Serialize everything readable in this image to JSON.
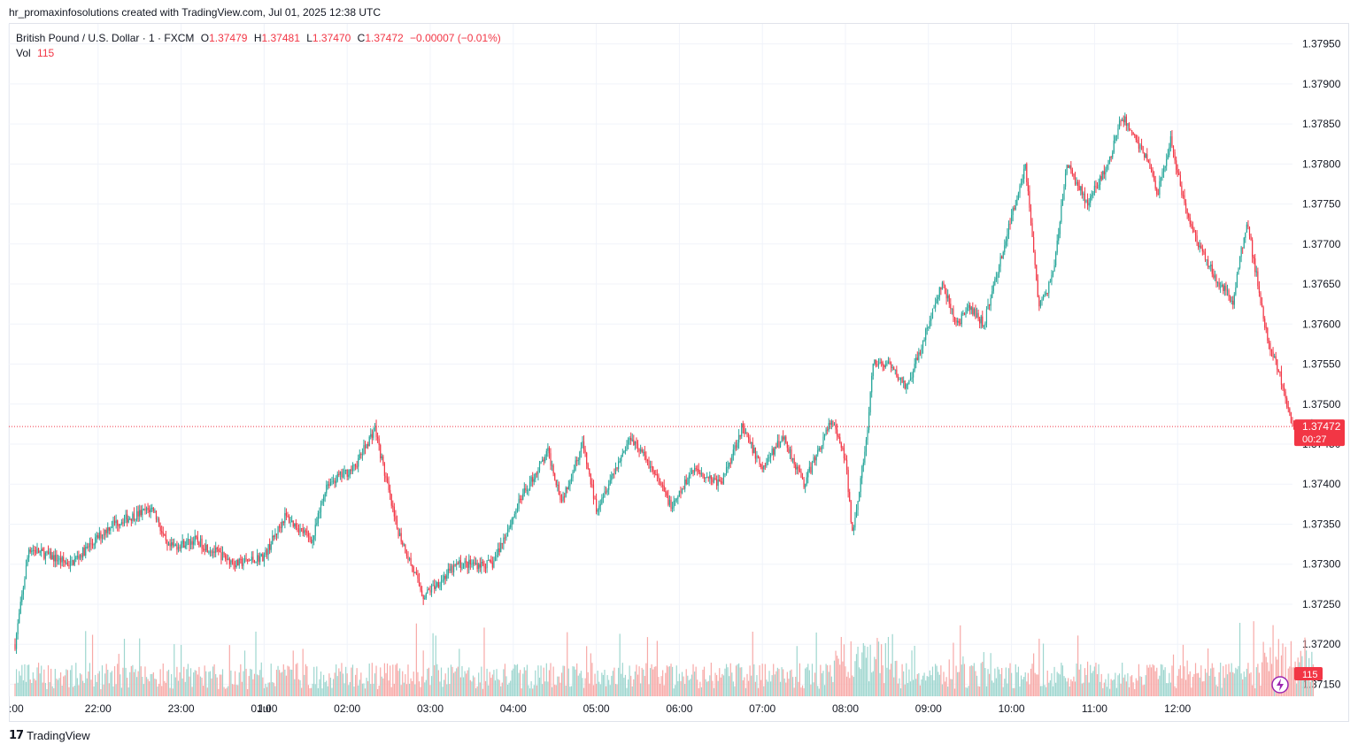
{
  "caption": "hr_promaxinfosolutions created with TradingView.com, Jul 01, 2025 12:38 UTC",
  "legend": {
    "symbol": "British Pound / U.S. Dollar · 1 · FXCM",
    "open_label": "O",
    "open": "1.37479",
    "high_label": "H",
    "high": "1.37481",
    "low_label": "L",
    "low": "1.37470",
    "close_label": "C",
    "close": "1.37472",
    "change": "−0.00007 (−0.01%)",
    "vol_label": "Vol",
    "vol": "115"
  },
  "price_tag": {
    "price": "1.37472",
    "countdown": "00:27"
  },
  "vol_tag": "115",
  "footer": {
    "logo_mark": "17",
    "brand": "TradingView"
  },
  "colors": {
    "up": "#26a69a",
    "down": "#f23645",
    "vol_up": "#9ed6cf",
    "vol_down": "#f7a9a7",
    "grid": "#f0f3fa",
    "text": "#131722"
  },
  "chart_data": {
    "type": "candlestick",
    "title": "British Pound / U.S. Dollar · 1 · FXCM",
    "y_ticks": [
      "1.37950",
      "1.37900",
      "1.37850",
      "1.37800",
      "1.37750",
      "1.37700",
      "1.37650",
      "1.37600",
      "1.37550",
      "1.37500",
      "1.37450",
      "1.37400",
      "1.37350",
      "1.37300",
      "1.37250",
      "1.37200",
      "1.37150"
    ],
    "y_range": [
      1.37135,
      1.37975
    ],
    "x_ticks": [
      ":00",
      "22:00",
      "23:00",
      "Jul",
      "01:00",
      "02:00",
      "03:00",
      "04:00",
      "05:00",
      "06:00",
      "07:00",
      "08:00",
      "09:00",
      "10:00",
      "11:00",
      "12:00"
    ],
    "last_price": 1.37472,
    "key_prices": [
      {
        "time": "21:00",
        "price": 1.372
      },
      {
        "time": "21:10",
        "price": 1.3732
      },
      {
        "time": "21:40",
        "price": 1.373
      },
      {
        "time": "22:10",
        "price": 1.3735
      },
      {
        "time": "22:40",
        "price": 1.3737
      },
      {
        "time": "22:50",
        "price": 1.3732
      },
      {
        "time": "23:10",
        "price": 1.3733
      },
      {
        "time": "23:40",
        "price": 1.373
      },
      {
        "time": "00:00",
        "price": 1.3731
      },
      {
        "time": "00:15",
        "price": 1.3736
      },
      {
        "time": "00:35",
        "price": 1.3733
      },
      {
        "time": "00:45",
        "price": 1.374
      },
      {
        "time": "01:05",
        "price": 1.3742
      },
      {
        "time": "01:20",
        "price": 1.3747
      },
      {
        "time": "01:35",
        "price": 1.3735
      },
      {
        "time": "01:55",
        "price": 1.3726
      },
      {
        "time": "02:20",
        "price": 1.373
      },
      {
        "time": "02:45",
        "price": 1.373
      },
      {
        "time": "03:05",
        "price": 1.3738
      },
      {
        "time": "03:25",
        "price": 1.3744
      },
      {
        "time": "03:35",
        "price": 1.3738
      },
      {
        "time": "03:50",
        "price": 1.3745
      },
      {
        "time": "04:00",
        "price": 1.3737
      },
      {
        "time": "04:25",
        "price": 1.3746
      },
      {
        "time": "04:40",
        "price": 1.3742
      },
      {
        "time": "04:55",
        "price": 1.3737
      },
      {
        "time": "05:10",
        "price": 1.3742
      },
      {
        "time": "05:30",
        "price": 1.374
      },
      {
        "time": "05:45",
        "price": 1.3747
      },
      {
        "time": "06:00",
        "price": 1.3742
      },
      {
        "time": "06:15",
        "price": 1.3746
      },
      {
        "time": "06:30",
        "price": 1.374
      },
      {
        "time": "06:50",
        "price": 1.3748
      },
      {
        "time": "07:00",
        "price": 1.3743
      },
      {
        "time": "07:05",
        "price": 1.3734
      },
      {
        "time": "07:15",
        "price": 1.3745
      },
      {
        "time": "07:20",
        "price": 1.3755
      },
      {
        "time": "07:30",
        "price": 1.3755
      },
      {
        "time": "07:45",
        "price": 1.3752
      },
      {
        "time": "08:00",
        "price": 1.376
      },
      {
        "time": "08:10",
        "price": 1.3765
      },
      {
        "time": "08:20",
        "price": 1.376
      },
      {
        "time": "08:30",
        "price": 1.3762
      },
      {
        "time": "08:40",
        "price": 1.376
      },
      {
        "time": "08:55",
        "price": 1.377
      },
      {
        "time": "09:10",
        "price": 1.378
      },
      {
        "time": "09:20",
        "price": 1.3762
      },
      {
        "time": "09:30",
        "price": 1.3766
      },
      {
        "time": "09:40",
        "price": 1.378
      },
      {
        "time": "09:55",
        "price": 1.3775
      },
      {
        "time": "10:10",
        "price": 1.378
      },
      {
        "time": "10:20",
        "price": 1.3786
      },
      {
        "time": "10:40",
        "price": 1.378
      },
      {
        "time": "10:45",
        "price": 1.3776
      },
      {
        "time": "10:55",
        "price": 1.3783
      },
      {
        "time": "11:05",
        "price": 1.3775
      },
      {
        "time": "11:15",
        "price": 1.377
      },
      {
        "time": "11:30",
        "price": 1.3765
      },
      {
        "time": "11:40",
        "price": 1.3763
      },
      {
        "time": "11:50",
        "price": 1.3773
      },
      {
        "time": "12:05",
        "price": 1.3758
      },
      {
        "time": "12:15",
        "price": 1.3753
      },
      {
        "time": "12:25",
        "price": 1.3746
      },
      {
        "time": "12:38",
        "price": 1.37472
      }
    ]
  }
}
